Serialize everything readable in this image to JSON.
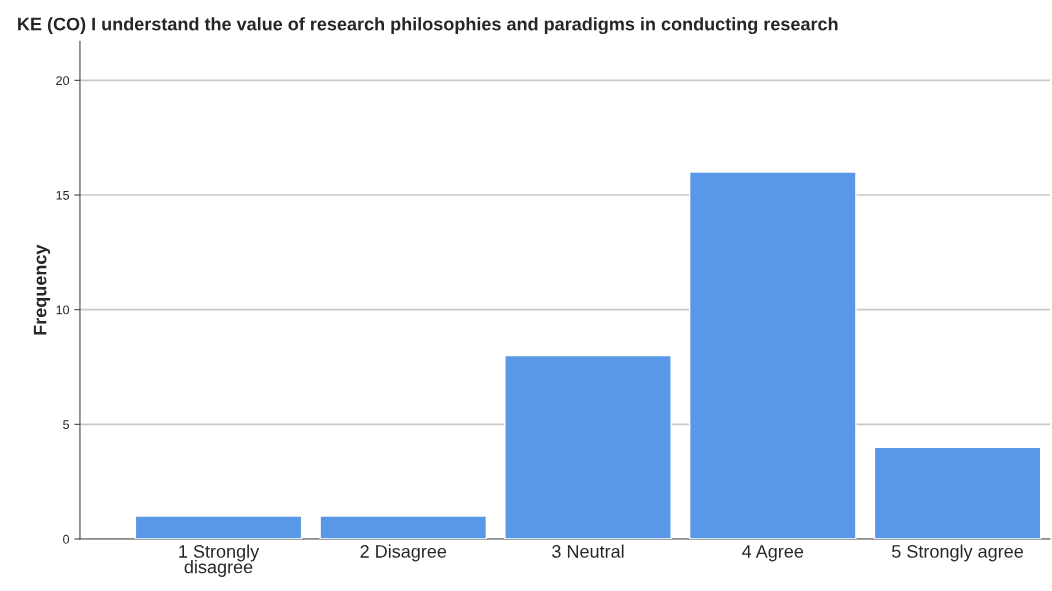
{
  "chart_data": {
    "type": "bar",
    "title": "KE (CO) I understand the value of research philosophies and paradigms in conducting research",
    "ylabel": "Frequency",
    "categories": [
      "1 Strongly\ndisagree",
      "2 Disagree",
      "3 Neutral",
      "4 Agree",
      "5 Strongly agree"
    ],
    "values": [
      1,
      1,
      8,
      16,
      4
    ],
    "color": "#5898e6",
    "ylim": [
      0,
      21.7
    ],
    "yticks": [
      0,
      5,
      10,
      15,
      20
    ],
    "grid": "y"
  }
}
